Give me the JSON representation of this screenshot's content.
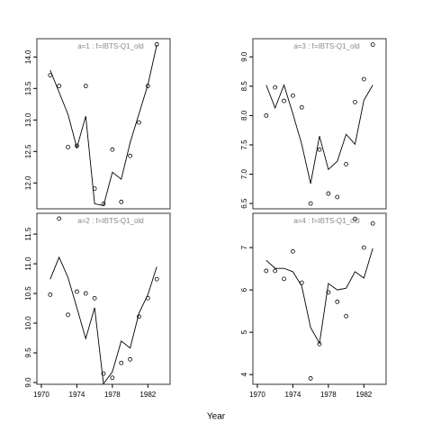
{
  "xlabel": "Year",
  "chart_data": [
    {
      "type": "line",
      "title": "a=1  :  f=IBTS-Q1_old",
      "x": [
        1971,
        1972,
        1973,
        1974,
        1975,
        1976,
        1977,
        1978,
        1979,
        1980,
        1981,
        1982,
        1983
      ],
      "series": [
        {
          "style": "points",
          "color": "#000000",
          "values": [
            13.71,
            13.54,
            12.57,
            12.59,
            13.54,
            11.91,
            11.67,
            12.53,
            11.7,
            12.43,
            12.96,
            13.54,
            14.2
          ]
        },
        {
          "style": "line",
          "color": "#000000",
          "values": [
            13.79,
            13.44,
            13.09,
            12.56,
            13.06,
            11.67,
            11.64,
            12.17,
            12.06,
            12.64,
            13.1,
            13.56,
            14.19
          ]
        }
      ],
      "xlim": [
        1969.5,
        1984.5
      ],
      "ylim": [
        11.59,
        14.29
      ],
      "yticks": [
        {
          "value": 12,
          "label": "12.0"
        },
        12.5,
        {
          "value": 13,
          "label": "13.0"
        },
        13.5,
        {
          "value": 14,
          "label": "14.0"
        }
      ]
    },
    {
      "type": "line",
      "title": "a=3  :  f=IBTS-Q1_old",
      "x": [
        1971,
        1972,
        1973,
        1974,
        1975,
        1976,
        1977,
        1978,
        1979,
        1980,
        1981,
        1982,
        1983
      ],
      "series": [
        {
          "style": "points",
          "color": "#000000",
          "values": [
            8.0,
            8.48,
            8.25,
            8.34,
            8.14,
            6.5,
            7.42,
            6.67,
            6.61,
            7.17,
            8.23,
            8.62,
            9.21
          ]
        },
        {
          "style": "line",
          "color": "#000000",
          "values": [
            8.52,
            8.13,
            8.52,
            8.03,
            7.51,
            6.84,
            7.65,
            7.08,
            7.22,
            7.68,
            7.51,
            8.26,
            8.52
          ]
        }
      ],
      "xlim": [
        1969.5,
        1984.5
      ],
      "ylim": [
        6.41,
        9.31
      ],
      "yticks": [
        6.5,
        {
          "value": 7,
          "label": "7.0"
        },
        7.5,
        {
          "value": 8,
          "label": "8.0"
        },
        8.5,
        {
          "value": 9,
          "label": "9.0"
        }
      ]
    },
    {
      "type": "line",
      "title": "a=2  :  f=IBTS-Q1_old",
      "x": [
        1971,
        1972,
        1973,
        1974,
        1975,
        1976,
        1977,
        1978,
        1979,
        1980,
        1981,
        1982,
        1983
      ],
      "series": [
        {
          "style": "points",
          "color": "#000000",
          "values": [
            10.48,
            11.76,
            10.14,
            10.53,
            10.5,
            10.42,
            9.15,
            9.08,
            9.33,
            9.39,
            10.11,
            10.42,
            10.74
          ]
        },
        {
          "style": "line",
          "color": "#000000",
          "values": [
            10.74,
            11.11,
            10.77,
            10.26,
            9.74,
            10.26,
            8.98,
            9.18,
            9.7,
            9.58,
            10.17,
            10.48,
            10.95
          ]
        }
      ],
      "xlim": [
        1969.5,
        1984.5
      ],
      "ylim": [
        8.97,
        11.85
      ],
      "xticks": [
        1970,
        1974,
        1978,
        1982
      ],
      "yticks": [
        {
          "value": 9,
          "label": "9.0"
        },
        9.5,
        {
          "value": 10,
          "label": "10.0"
        },
        10.5,
        {
          "value": 11,
          "label": "11.0"
        },
        11.5
      ]
    },
    {
      "type": "line",
      "title": "a=4  :  f=IBTS-Q1_old",
      "x": [
        1971,
        1972,
        1973,
        1974,
        1975,
        1976,
        1977,
        1978,
        1979,
        1980,
        1981,
        1982,
        1983
      ],
      "series": [
        {
          "style": "points",
          "color": "#000000",
          "values": [
            6.45,
            6.45,
            6.26,
            6.91,
            6.17,
            3.91,
            4.72,
            5.94,
            5.72,
            5.38,
            7.68,
            7.0,
            7.57
          ]
        },
        {
          "style": "line",
          "color": "#000000",
          "values": [
            6.7,
            6.51,
            6.51,
            6.43,
            6.09,
            5.11,
            4.74,
            6.15,
            6.0,
            6.04,
            6.43,
            6.28,
            6.98
          ]
        }
      ],
      "xlim": [
        1969.5,
        1984.5
      ],
      "ylim": [
        3.77,
        7.81
      ],
      "xticks": [
        1970,
        1974,
        1978,
        1982
      ],
      "yticks": [
        4,
        5,
        6,
        7
      ]
    }
  ]
}
